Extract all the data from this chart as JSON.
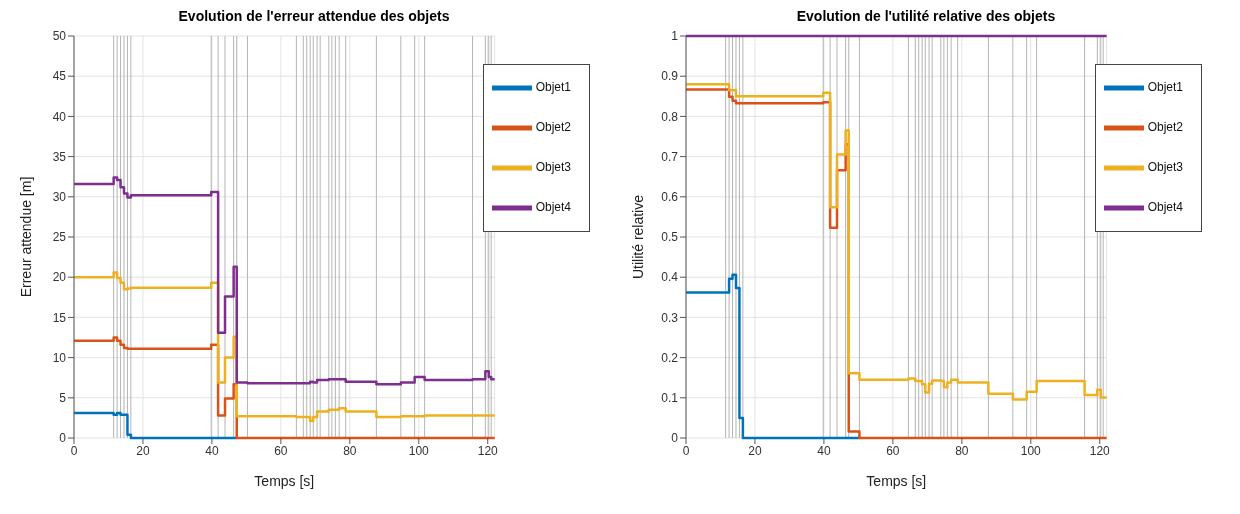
{
  "chart_data": [
    {
      "type": "step",
      "title": "Evolution de l'erreur attendue des objets",
      "xlabel": "Temps [s]",
      "ylabel": "Erreur attendue [m]",
      "x": [
        0,
        11.5,
        12.5,
        13.5,
        14.5,
        15.5,
        16.5,
        39.8,
        41.8,
        43.8,
        46.3,
        47.2,
        50.3,
        64.5,
        66.5,
        67.5,
        68.5,
        69.4,
        70.5,
        71.4,
        73.9,
        74.8,
        75.8,
        76.9,
        78.8,
        87.7,
        94.8,
        98.8,
        101.7,
        115.6,
        119.3,
        120.3,
        121,
        122
      ],
      "series": [
        {
          "name": "Objet1",
          "color": "#0072bd",
          "values": [
            3.1,
            2.9,
            3.1,
            2.9,
            2.9,
            0.4,
            0,
            0,
            0,
            0,
            0,
            0,
            null,
            null,
            null,
            null,
            null,
            null,
            null,
            null,
            null,
            null,
            null,
            null,
            null,
            null,
            null,
            null,
            null,
            null,
            null,
            null,
            null,
            null
          ]
        },
        {
          "name": "Objet2",
          "color": "#d95319",
          "values": [
            12.1,
            12.5,
            12.1,
            11.6,
            11.2,
            11.1,
            11.1,
            11.6,
            2.8,
            4.9,
            6.7,
            0,
            0,
            0,
            0,
            0,
            0,
            0,
            0,
            0,
            0,
            0,
            0,
            0,
            0,
            0,
            0,
            0,
            0,
            0,
            0,
            0,
            0,
            0
          ]
        },
        {
          "name": "Objet3",
          "color": "#edb120",
          "values": [
            20.0,
            20.6,
            19.9,
            19.3,
            18.5,
            18.6,
            18.7,
            19.3,
            6.9,
            10.0,
            12.6,
            2.7,
            2.7,
            2.6,
            2.6,
            2.6,
            2.1,
            2.6,
            3.3,
            3.3,
            3.5,
            3.5,
            3.5,
            3.7,
            3.3,
            2.6,
            2.7,
            2.7,
            2.8,
            2.8,
            2.8,
            2.8,
            2.8,
            2.8
          ]
        },
        {
          "name": "Objet4",
          "color": "#7e2f8e",
          "values": [
            31.6,
            32.4,
            32.1,
            31.2,
            30.4,
            29.9,
            30.2,
            30.6,
            13.1,
            17.6,
            21.3,
            6.9,
            6.8,
            6.8,
            6.8,
            6.8,
            7.0,
            6.9,
            7.2,
            7.2,
            7.3,
            7.3,
            7.3,
            7.3,
            7.0,
            6.7,
            6.9,
            7.6,
            7.2,
            7.3,
            8.3,
            7.6,
            7.3,
            7.3
          ]
        }
      ],
      "xlim": [
        0,
        122
      ],
      "xticks": [
        0,
        20,
        40,
        60,
        80,
        100,
        120
      ],
      "ylim": [
        0,
        50
      ],
      "yticks": [
        0,
        5,
        10,
        15,
        20,
        25,
        30,
        35,
        40,
        45,
        50
      ],
      "grid": true,
      "legend": "top right",
      "ref_lines": [
        {
          "axis": "x",
          "value": 11.5,
          "color": "#b4b4b4"
        },
        {
          "axis": "x",
          "value": 12.5,
          "color": "#b4b4b4"
        },
        {
          "axis": "x",
          "value": 13.5,
          "color": "#b4b4b4"
        },
        {
          "axis": "x",
          "value": 14.5,
          "color": "#b4b4b4"
        },
        {
          "axis": "x",
          "value": 15.5,
          "color": "#b4b4b4"
        },
        {
          "axis": "x",
          "value": 16.5,
          "color": "#b4b4b4"
        },
        {
          "axis": "x",
          "value": 39.8,
          "color": "#b4b4b4"
        },
        {
          "axis": "x",
          "value": 41.8,
          "color": "#b4b4b4"
        },
        {
          "axis": "x",
          "value": 43.8,
          "color": "#b4b4b4"
        },
        {
          "axis": "x",
          "value": 46.3,
          "color": "#b4b4b4"
        },
        {
          "axis": "x",
          "value": 47.2,
          "color": "#b4b4b4"
        },
        {
          "axis": "x",
          "value": 50.3,
          "color": "#b4b4b4"
        },
        {
          "axis": "x",
          "value": 64.5,
          "color": "#b4b4b4"
        },
        {
          "axis": "x",
          "value": 66.5,
          "color": "#b4b4b4"
        },
        {
          "axis": "x",
          "value": 67.5,
          "color": "#b4b4b4"
        },
        {
          "axis": "x",
          "value": 68.5,
          "color": "#b4b4b4"
        },
        {
          "axis": "x",
          "value": 69.4,
          "color": "#b4b4b4"
        },
        {
          "axis": "x",
          "value": 70.5,
          "color": "#b4b4b4"
        },
        {
          "axis": "x",
          "value": 71.4,
          "color": "#b4b4b4"
        },
        {
          "axis": "x",
          "value": 73.9,
          "color": "#b4b4b4"
        },
        {
          "axis": "x",
          "value": 74.8,
          "color": "#b4b4b4"
        },
        {
          "axis": "x",
          "value": 75.8,
          "color": "#b4b4b4"
        },
        {
          "axis": "x",
          "value": 76.9,
          "color": "#b4b4b4"
        },
        {
          "axis": "x",
          "value": 78.8,
          "color": "#b4b4b4"
        },
        {
          "axis": "x",
          "value": 87.7,
          "color": "#b4b4b4"
        },
        {
          "axis": "x",
          "value": 94.8,
          "color": "#b4b4b4"
        },
        {
          "axis": "x",
          "value": 98.8,
          "color": "#b4b4b4"
        },
        {
          "axis": "x",
          "value": 101.7,
          "color": "#b4b4b4"
        },
        {
          "axis": "x",
          "value": 115.6,
          "color": "#b4b4b4"
        },
        {
          "axis": "x",
          "value": 119.3,
          "color": "#b4b4b4"
        },
        {
          "axis": "x",
          "value": 120.3,
          "color": "#b4b4b4"
        },
        {
          "axis": "x",
          "value": 121,
          "color": "#b4b4b4"
        }
      ]
    },
    {
      "type": "step",
      "title": "Evolution de l'utilité relative des objets",
      "xlabel": "Temps [s]",
      "ylabel": "Utilité relative",
      "x": [
        0,
        11.5,
        12.5,
        13.5,
        14.5,
        15.5,
        16.5,
        39.8,
        41.8,
        43.8,
        46.3,
        47.2,
        50.3,
        64.5,
        66.5,
        67.5,
        68.5,
        69.4,
        70.5,
        71.4,
        73.9,
        74.8,
        75.8,
        76.9,
        78.8,
        87.7,
        94.8,
        98.8,
        101.7,
        115.6,
        119.3,
        120.3,
        121,
        122
      ],
      "series": [
        {
          "name": "Objet1",
          "color": "#0072bd",
          "values": [
            0.362,
            0.362,
            0.396,
            0.406,
            0.373,
            0.05,
            0,
            0,
            0,
            0,
            0,
            0,
            0,
            null,
            null,
            null,
            null,
            null,
            null,
            null,
            null,
            null,
            null,
            null,
            null,
            null,
            null,
            null,
            null,
            null,
            null,
            null,
            null,
            null
          ]
        },
        {
          "name": "Objet2",
          "color": "#d95319",
          "values": [
            0.867,
            0.867,
            0.849,
            0.839,
            0.833,
            0.833,
            0.833,
            0.835,
            0.523,
            0.666,
            0.731,
            0.016,
            0,
            0,
            0,
            0,
            0,
            0,
            0,
            0,
            0,
            0,
            0,
            0,
            0,
            0,
            0,
            0,
            0,
            0,
            0,
            0,
            0,
            0
          ]
        },
        {
          "name": "Objet3",
          "color": "#edb120",
          "values": [
            0.88,
            0.88,
            0.865,
            0.865,
            0.85,
            0.85,
            0.85,
            0.859,
            0.574,
            0.705,
            0.765,
            0.161,
            0.145,
            0.148,
            0.142,
            0.142,
            0.134,
            0.113,
            0.135,
            0.143,
            0.142,
            0.126,
            0.138,
            0.145,
            0.138,
            0.11,
            0.096,
            0.115,
            0.142,
            0.107,
            0.12,
            0.101,
            0.101,
            0.101
          ]
        },
        {
          "name": "Objet4",
          "color": "#7e2f8e",
          "values": [
            1,
            1,
            1,
            1,
            1,
            1,
            1,
            1,
            1,
            1,
            1,
            1,
            1,
            1,
            1,
            1,
            1,
            1,
            1,
            1,
            1,
            1,
            1,
            1,
            1,
            1,
            1,
            1,
            1,
            1,
            1,
            1,
            1,
            1
          ]
        }
      ],
      "xlim": [
        0,
        122
      ],
      "xticks": [
        0,
        20,
        40,
        60,
        80,
        100,
        120
      ],
      "ylim": [
        0,
        1
      ],
      "yticks": [
        0,
        0.1,
        0.2,
        0.3,
        0.4,
        0.5,
        0.6,
        0.7,
        0.8,
        0.9,
        1
      ],
      "grid": true,
      "legend": "top right",
      "ref_lines": [
        {
          "axis": "x",
          "value": 11.5,
          "color": "#b4b4b4"
        },
        {
          "axis": "x",
          "value": 12.5,
          "color": "#b4b4b4"
        },
        {
          "axis": "x",
          "value": 13.5,
          "color": "#b4b4b4"
        },
        {
          "axis": "x",
          "value": 14.5,
          "color": "#b4b4b4"
        },
        {
          "axis": "x",
          "value": 15.5,
          "color": "#b4b4b4"
        },
        {
          "axis": "x",
          "value": 16.5,
          "color": "#b4b4b4"
        },
        {
          "axis": "x",
          "value": 39.8,
          "color": "#b4b4b4"
        },
        {
          "axis": "x",
          "value": 41.8,
          "color": "#b4b4b4"
        },
        {
          "axis": "x",
          "value": 43.8,
          "color": "#b4b4b4"
        },
        {
          "axis": "x",
          "value": 46.3,
          "color": "#b4b4b4"
        },
        {
          "axis": "x",
          "value": 47.2,
          "color": "#b4b4b4"
        },
        {
          "axis": "x",
          "value": 50.3,
          "color": "#b4b4b4"
        },
        {
          "axis": "x",
          "value": 64.5,
          "color": "#b4b4b4"
        },
        {
          "axis": "x",
          "value": 66.5,
          "color": "#b4b4b4"
        },
        {
          "axis": "x",
          "value": 67.5,
          "color": "#b4b4b4"
        },
        {
          "axis": "x",
          "value": 68.5,
          "color": "#b4b4b4"
        },
        {
          "axis": "x",
          "value": 69.4,
          "color": "#b4b4b4"
        },
        {
          "axis": "x",
          "value": 70.5,
          "color": "#b4b4b4"
        },
        {
          "axis": "x",
          "value": 71.4,
          "color": "#b4b4b4"
        },
        {
          "axis": "x",
          "value": 73.9,
          "color": "#b4b4b4"
        },
        {
          "axis": "x",
          "value": 74.8,
          "color": "#b4b4b4"
        },
        {
          "axis": "x",
          "value": 75.8,
          "color": "#b4b4b4"
        },
        {
          "axis": "x",
          "value": 76.9,
          "color": "#b4b4b4"
        },
        {
          "axis": "x",
          "value": 78.8,
          "color": "#b4b4b4"
        },
        {
          "axis": "x",
          "value": 87.7,
          "color": "#b4b4b4"
        },
        {
          "axis": "x",
          "value": 94.8,
          "color": "#b4b4b4"
        },
        {
          "axis": "x",
          "value": 98.8,
          "color": "#b4b4b4"
        },
        {
          "axis": "x",
          "value": 101.7,
          "color": "#b4b4b4"
        },
        {
          "axis": "x",
          "value": 115.6,
          "color": "#b4b4b4"
        },
        {
          "axis": "x",
          "value": 119.3,
          "color": "#b4b4b4"
        },
        {
          "axis": "x",
          "value": 120.3,
          "color": "#b4b4b4"
        },
        {
          "axis": "x",
          "value": 121,
          "color": "#b4b4b4"
        }
      ]
    }
  ]
}
